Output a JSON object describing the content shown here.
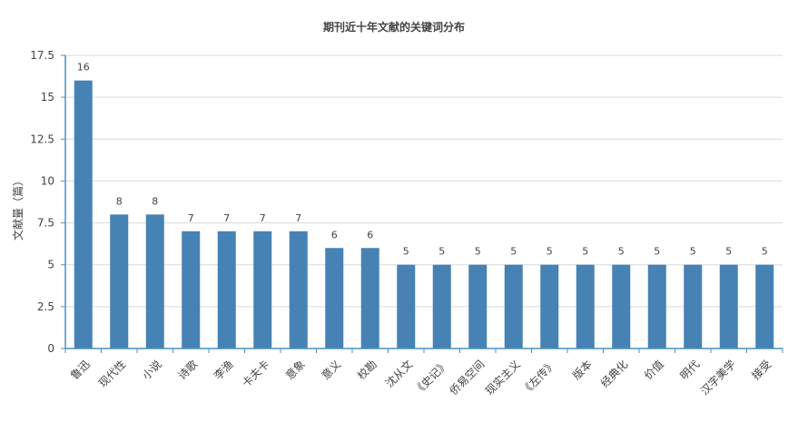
{
  "chart_data": {
    "type": "bar",
    "title": "期刊近十年文献的关键词分布",
    "xlabel": "",
    "ylabel": "文献量（篇）",
    "ylim": [
      0,
      17.5
    ],
    "yticks": [
      0,
      2.5,
      5,
      7.5,
      10,
      12.5,
      15,
      17.5
    ],
    "ytick_labels": [
      "0",
      "2.5",
      "5",
      "7.5",
      "10",
      "12.5",
      "15",
      "17.5"
    ],
    "grid": true,
    "categories": [
      "鲁迅",
      "现代性",
      "小说",
      "诗歌",
      "李渔",
      "卡夫卡",
      "意象",
      "意义",
      "校勘",
      "沈从文",
      "《史记》",
      "侨易空间",
      "现实主义",
      "《左传》",
      "版本",
      "经典化",
      "价值",
      "明代",
      "汉字美学",
      "接受"
    ],
    "values": [
      16,
      8,
      8,
      7,
      7,
      7,
      7,
      6,
      6,
      5,
      5,
      5,
      5,
      5,
      5,
      5,
      5,
      5,
      5,
      5
    ],
    "data_labels": [
      "16",
      "8",
      "8",
      "7",
      "7",
      "7",
      "7",
      "6",
      "6",
      "5",
      "5",
      "5",
      "5",
      "5",
      "5",
      "5",
      "5",
      "5",
      "5",
      "5"
    ],
    "bar_color": "#4682B4",
    "grid_color": "#D9D9D9",
    "axis_color": "#4A90C2",
    "text_color": "#444444"
  }
}
